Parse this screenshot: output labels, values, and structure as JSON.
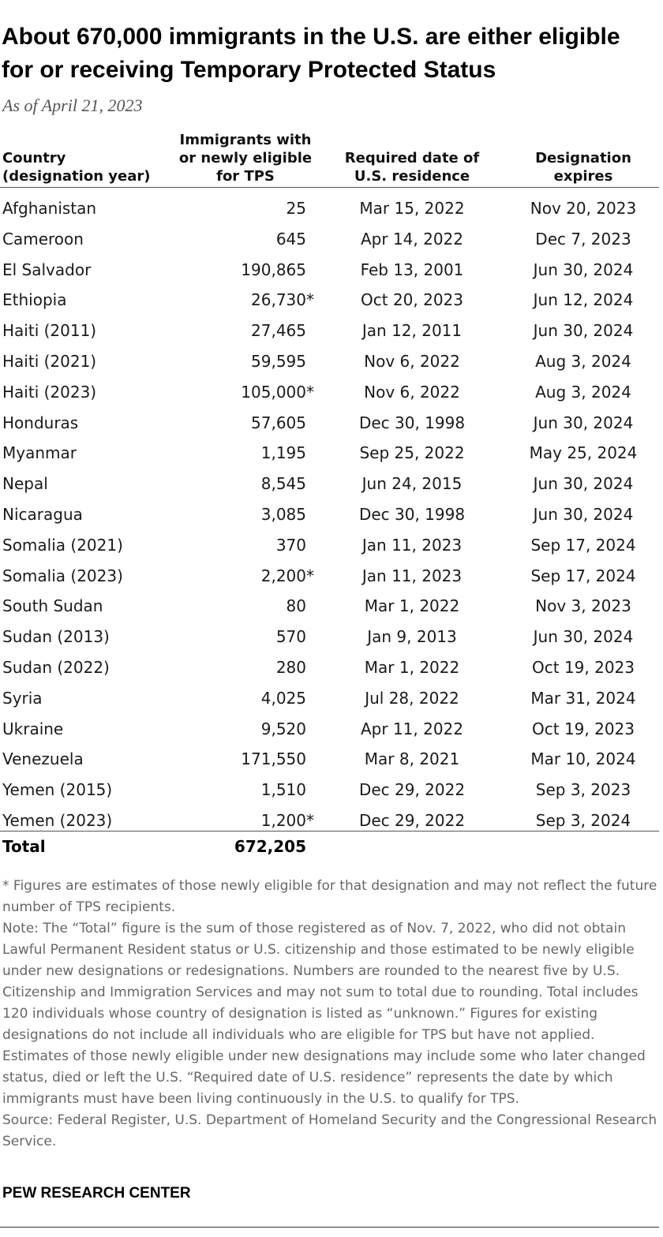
{
  "title": "About 670,000 immigrants in the U.S. are either eligible for or receiving Temporary Protected Status",
  "subtitle": "As of April 21, 2023",
  "headers": {
    "country_1": "Country",
    "country_2": "(designation year)",
    "count_1": "Immigrants with",
    "count_2": "or newly eligible",
    "count_3": "for TPS",
    "required_1": "Required date of",
    "required_2": "U.S. residence",
    "expires_1": "Designation",
    "expires_2": "expires"
  },
  "chart_data": {
    "type": "table",
    "columns": [
      "Country (designation year)",
      "Immigrants with or newly eligible for TPS",
      "Required date of U.S. residence",
      "Designation expires"
    ],
    "rows": [
      {
        "country": "Afghanistan",
        "count": "25",
        "mark": "",
        "required": "Mar 15, 2022",
        "expires": "Nov 20, 2023"
      },
      {
        "country": "Cameroon",
        "count": "645",
        "mark": "",
        "required": "Apr 14, 2022",
        "expires": "Dec 7, 2023"
      },
      {
        "country": "El Salvador",
        "count": "190,865",
        "mark": "",
        "required": "Feb 13, 2001",
        "expires": "Jun 30, 2024"
      },
      {
        "country": "Ethiopia",
        "count": "26,730",
        "mark": "*",
        "required": "Oct 20, 2023",
        "expires": "Jun 12, 2024"
      },
      {
        "country": "Haiti (2011)",
        "count": "27,465",
        "mark": "",
        "required": "Jan 12, 2011",
        "expires": "Jun 30, 2024"
      },
      {
        "country": "Haiti (2021)",
        "count": "59,595",
        "mark": "",
        "required": "Nov 6, 2022",
        "expires": "Aug 3, 2024"
      },
      {
        "country": "Haiti (2023)",
        "count": "105,000",
        "mark": "*",
        "required": "Nov 6, 2022",
        "expires": "Aug 3, 2024"
      },
      {
        "country": "Honduras",
        "count": "57,605",
        "mark": "",
        "required": "Dec 30, 1998",
        "expires": "Jun 30, 2024"
      },
      {
        "country": "Myanmar",
        "count": "1,195",
        "mark": "",
        "required": "Sep 25, 2022",
        "expires": "May 25, 2024"
      },
      {
        "country": "Nepal",
        "count": "8,545",
        "mark": "",
        "required": "Jun 24, 2015",
        "expires": "Jun 30, 2024"
      },
      {
        "country": "Nicaragua",
        "count": "3,085",
        "mark": "",
        "required": "Dec 30, 1998",
        "expires": "Jun 30, 2024"
      },
      {
        "country": "Somalia (2021)",
        "count": "370",
        "mark": "",
        "required": "Jan 11, 2023",
        "expires": "Sep 17, 2024"
      },
      {
        "country": "Somalia (2023)",
        "count": "2,200",
        "mark": "*",
        "required": "Jan 11, 2023",
        "expires": "Sep 17, 2024"
      },
      {
        "country": "South Sudan",
        "count": "80",
        "mark": "",
        "required": "Mar 1, 2022",
        "expires": "Nov 3, 2023"
      },
      {
        "country": "Sudan (2013)",
        "count": "570",
        "mark": "",
        "required": "Jan 9, 2013",
        "expires": "Jun 30, 2024"
      },
      {
        "country": "Sudan (2022)",
        "count": "280",
        "mark": "",
        "required": "Mar 1, 2022",
        "expires": "Oct 19, 2023"
      },
      {
        "country": "Syria",
        "count": "4,025",
        "mark": "",
        "required": "Jul 28, 2022",
        "expires": "Mar 31, 2024"
      },
      {
        "country": "Ukraine",
        "count": "9,520",
        "mark": "",
        "required": "Apr 11, 2022",
        "expires": "Oct 19, 2023"
      },
      {
        "country": "Venezuela",
        "count": "171,550",
        "mark": "",
        "required": "Mar 8, 2021",
        "expires": "Mar 10, 2024"
      },
      {
        "country": "Yemen (2015)",
        "count": "1,510",
        "mark": "",
        "required": "Dec 29, 2022",
        "expires": "Sep 3, 2023"
      },
      {
        "country": "Yemen (2023)",
        "count": "1,200",
        "mark": "*",
        "required": "Dec 29, 2022",
        "expires": "Sep 3, 2024"
      }
    ],
    "total": {
      "label": "Total",
      "count": "672,205"
    }
  },
  "notes": {
    "footnote": "* Figures are estimates of those newly eligible for that designation and may not reflect the future number of TPS recipients.",
    "note": "Note: The “Total” figure is the sum of those registered as of Nov. 7, 2022, who did not obtain Lawful Permanent Resident status or U.S. citizenship and those estimated to be newly eligible under new designations or redesignations. Numbers are rounded to the nearest five by U.S. Citizenship and Immigration Services and may not sum to total due to rounding. Total includes 120 individuals whose country of designation is listed as “unknown.” Figures for existing designations do not include all individuals who are eligible for TPS but have not applied. Estimates of those newly eligible under new designations may include some who later changed status, died or left the U.S. “Required date of U.S. residence” represents the date by which immigrants must have been living continuously in the U.S. to qualify for TPS.",
    "source": "Source: Federal Register, U.S. Department of Homeland Security and the Congressional Research Service."
  },
  "brand": "PEW RESEARCH CENTER"
}
